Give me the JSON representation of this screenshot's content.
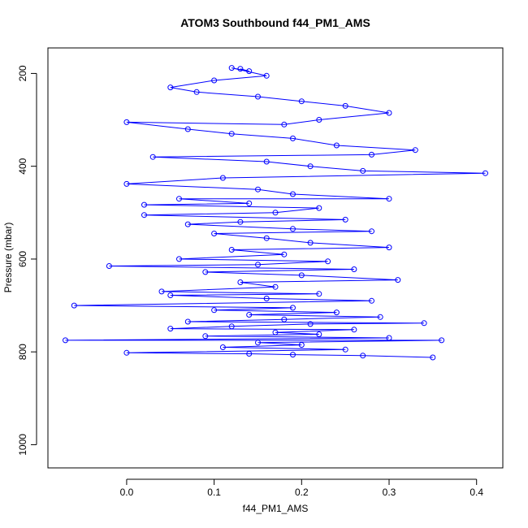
{
  "chart_data": {
    "type": "scatter",
    "title": "ATOM3 Southbound f44_PM1_AMS",
    "xlabel": "f44_PM1_AMS",
    "ylabel": "Pressure (mbar)",
    "xlim": [
      -0.09,
      0.43
    ],
    "ylim": [
      1050,
      145
    ],
    "y_reversed": true,
    "x_ticks": [
      0.0,
      0.1,
      0.2,
      0.3,
      0.4
    ],
    "x_tick_labels": [
      "0.0",
      "0.1",
      "0.2",
      "0.3",
      "0.4"
    ],
    "y_ticks": [
      200,
      400,
      600,
      800,
      1000
    ],
    "y_tick_labels": [
      "200",
      "400",
      "600",
      "800",
      "1000"
    ],
    "grid": false,
    "legend": "none",
    "marker": "open-circle",
    "connected": true,
    "color": "#0000ff",
    "series": [
      {
        "points": [
          [
            0.13,
            190
          ],
          [
            0.14,
            195
          ],
          [
            0.12,
            188
          ],
          [
            0.16,
            205
          ],
          [
            0.1,
            215
          ],
          [
            0.05,
            230
          ],
          [
            0.08,
            240
          ],
          [
            0.15,
            250
          ],
          [
            0.2,
            260
          ],
          [
            0.25,
            270
          ],
          [
            0.3,
            285
          ],
          [
            0.22,
            300
          ],
          [
            0.18,
            310
          ],
          [
            0.0,
            305
          ],
          [
            0.07,
            320
          ],
          [
            0.12,
            330
          ],
          [
            0.19,
            340
          ],
          [
            0.24,
            355
          ],
          [
            0.33,
            365
          ],
          [
            0.28,
            375
          ],
          [
            0.03,
            380
          ],
          [
            0.16,
            390
          ],
          [
            0.21,
            400
          ],
          [
            0.27,
            410
          ],
          [
            0.41,
            415
          ],
          [
            0.11,
            425
          ],
          [
            0.0,
            438
          ],
          [
            0.15,
            450
          ],
          [
            0.19,
            460
          ],
          [
            0.3,
            470
          ],
          [
            0.06,
            470
          ],
          [
            0.14,
            480
          ],
          [
            0.02,
            483
          ],
          [
            0.22,
            490
          ],
          [
            0.17,
            500
          ],
          [
            0.02,
            505
          ],
          [
            0.25,
            515
          ],
          [
            0.13,
            520
          ],
          [
            0.07,
            525
          ],
          [
            0.19,
            535
          ],
          [
            0.28,
            540
          ],
          [
            0.1,
            545
          ],
          [
            0.16,
            555
          ],
          [
            0.21,
            565
          ],
          [
            0.3,
            575
          ],
          [
            0.12,
            580
          ],
          [
            0.18,
            590
          ],
          [
            0.06,
            600
          ],
          [
            0.23,
            605
          ],
          [
            0.15,
            612
          ],
          [
            -0.02,
            615
          ],
          [
            0.26,
            622
          ],
          [
            0.09,
            628
          ],
          [
            0.2,
            635
          ],
          [
            0.31,
            645
          ],
          [
            0.13,
            650
          ],
          [
            0.17,
            660
          ],
          [
            0.04,
            670
          ],
          [
            0.22,
            675
          ],
          [
            0.05,
            678
          ],
          [
            0.16,
            685
          ],
          [
            0.28,
            690
          ],
          [
            -0.06,
            700
          ],
          [
            0.19,
            705
          ],
          [
            0.1,
            710
          ],
          [
            0.24,
            715
          ],
          [
            0.14,
            720
          ],
          [
            0.29,
            725
          ],
          [
            0.18,
            730
          ],
          [
            0.07,
            735
          ],
          [
            0.34,
            738
          ],
          [
            0.21,
            740
          ],
          [
            0.12,
            745
          ],
          [
            0.05,
            750
          ],
          [
            0.26,
            752
          ],
          [
            0.17,
            758
          ],
          [
            0.22,
            762
          ],
          [
            0.09,
            766
          ],
          [
            0.3,
            770
          ],
          [
            -0.07,
            775
          ],
          [
            0.36,
            775
          ],
          [
            0.15,
            780
          ],
          [
            0.2,
            785
          ],
          [
            0.11,
            790
          ],
          [
            0.25,
            795
          ],
          [
            0.0,
            802
          ],
          [
            0.14,
            804
          ],
          [
            0.19,
            806
          ],
          [
            0.27,
            808
          ],
          [
            0.35,
            812
          ]
        ]
      }
    ]
  }
}
